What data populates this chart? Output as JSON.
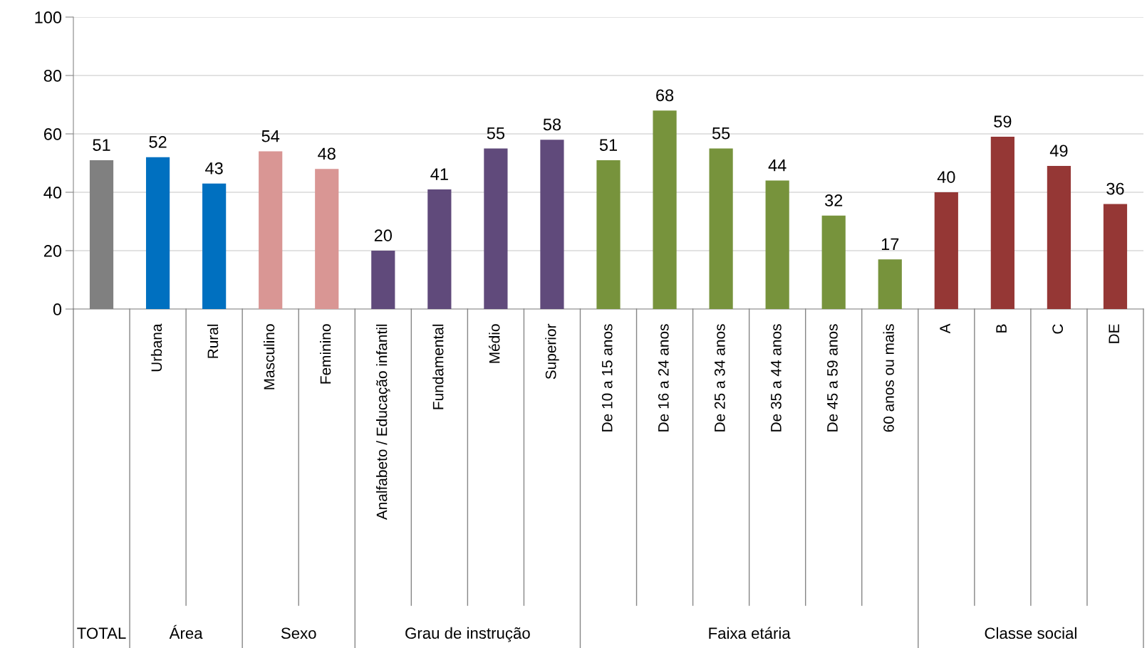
{
  "chart_data": {
    "type": "bar",
    "categories": [
      null,
      "Urbana",
      "Rural",
      "Masculino",
      "Feminino",
      "Analfabeto / Educação infantil",
      "Fundamental",
      "Médio",
      "Superior",
      "De 10 a 15 anos",
      "De 16 a 24 anos",
      "De 25 a 34 anos",
      "De 35 a 44 anos",
      "De 45 a 59 anos",
      "60 anos ou mais",
      "A",
      "B",
      "C",
      "DE"
    ],
    "values": [
      51,
      52,
      43,
      54,
      48,
      20,
      41,
      55,
      58,
      51,
      68,
      55,
      44,
      32,
      17,
      40,
      59,
      49,
      36
    ],
    "colors": [
      "#808080",
      "#0070c0",
      "#0070c0",
      "#d99694",
      "#d99694",
      "#604a7b",
      "#604a7b",
      "#604a7b",
      "#604a7b",
      "#77933c",
      "#77933c",
      "#77933c",
      "#77933c",
      "#77933c",
      "#77933c",
      "#953735",
      "#953735",
      "#953735",
      "#953735"
    ],
    "annotations": [
      "TOTAL",
      "Área",
      "Sexo",
      "Grau de instrução",
      "Faixa etária",
      "Classe social"
    ],
    "data_labels": true,
    "ylim": [
      0,
      100
    ],
    "yticks": [
      0,
      20,
      40,
      60,
      80,
      100
    ],
    "grid": "y"
  }
}
